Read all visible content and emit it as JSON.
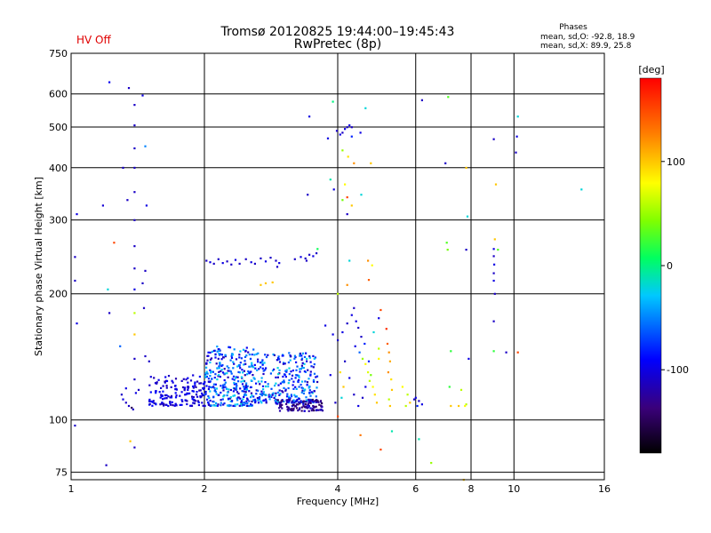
{
  "header": {
    "status": "HV Off",
    "title_line1": "Tromsø 20120825 19:44:00–19:45:43",
    "title_line2": "RwPretec (8p)",
    "stats_title": "Phases",
    "stats_o": "mean, sd,O: -92.8, 18.9",
    "stats_x": "mean, sd,X:  89.9, 25.8"
  },
  "colorbar": {
    "label": "[deg]",
    "range": [
      -180,
      180
    ],
    "ticks": [
      {
        "value": 100,
        "label": "100"
      },
      {
        "value": 0,
        "label": "0"
      },
      {
        "value": -100,
        "label": "-100"
      }
    ]
  },
  "chart_data": {
    "type": "scatter",
    "xlabel": "Frequency [MHz]",
    "ylabel": "Stationary phase Virtual Height [km]",
    "xscale": "log",
    "yscale": "log",
    "xlim": [
      1,
      16
    ],
    "ylim": [
      72,
      750
    ],
    "grid": true,
    "x_ticks": [
      {
        "value": 1,
        "label": "1"
      },
      {
        "value": 2,
        "label": "2"
      },
      {
        "value": 4,
        "label": "4"
      },
      {
        "value": 6,
        "label": "6"
      },
      {
        "value": 8,
        "label": "8"
      },
      {
        "value": 10,
        "label": "10"
      },
      {
        "value": 16,
        "label": "16"
      }
    ],
    "y_ticks": [
      {
        "value": 75,
        "label": "75"
      },
      {
        "value": 100,
        "label": "100"
      },
      {
        "value": 200,
        "label": "200"
      },
      {
        "value": 300,
        "label": "300"
      },
      {
        "value": 400,
        "label": "400"
      },
      {
        "value": 500,
        "label": "500"
      },
      {
        "value": 600,
        "label": "600"
      },
      {
        "value": 750,
        "label": "750"
      }
    ],
    "points": [
      [
        1.03,
        310,
        -100
      ],
      [
        1.02,
        245,
        -110
      ],
      [
        1.02,
        215,
        -110
      ],
      [
        1.03,
        170,
        -100
      ],
      [
        1.02,
        97,
        -110
      ],
      [
        1.22,
        640,
        -95
      ],
      [
        1.18,
        325,
        -105
      ],
      [
        1.25,
        265,
        150
      ],
      [
        1.21,
        205,
        -20
      ],
      [
        1.22,
        180,
        -110
      ],
      [
        1.29,
        150,
        -60
      ],
      [
        1.2,
        78,
        -110
      ],
      [
        1.35,
        620,
        -110
      ],
      [
        1.45,
        595,
        -100
      ],
      [
        1.39,
        565,
        -110
      ],
      [
        1.39,
        505,
        -110
      ],
      [
        1.39,
        445,
        -110
      ],
      [
        1.39,
        400,
        -110
      ],
      [
        1.39,
        350,
        -110
      ],
      [
        1.39,
        300,
        -110
      ],
      [
        1.39,
        260,
        -110
      ],
      [
        1.39,
        230,
        -110
      ],
      [
        1.39,
        205,
        -100
      ],
      [
        1.39,
        180,
        60
      ],
      [
        1.39,
        160,
        100
      ],
      [
        1.39,
        140,
        -110
      ],
      [
        1.39,
        125,
        -110
      ],
      [
        1.34,
        335,
        -110
      ],
      [
        1.31,
        400,
        -110
      ],
      [
        1.47,
        450,
        -50
      ],
      [
        1.48,
        325,
        -100
      ],
      [
        1.47,
        227,
        -110
      ],
      [
        1.45,
        212,
        -110
      ],
      [
        1.46,
        185,
        -110
      ],
      [
        1.36,
        89,
        100
      ],
      [
        1.39,
        86,
        -110
      ],
      [
        1.3,
        115,
        -110
      ],
      [
        1.31,
        112,
        -100
      ],
      [
        1.33,
        110,
        -110
      ],
      [
        1.35,
        108,
        -110
      ],
      [
        1.37,
        107,
        -150
      ],
      [
        1.38,
        106,
        -110
      ],
      [
        1.4,
        116,
        -100
      ],
      [
        1.42,
        118,
        -110
      ],
      [
        1.33,
        119,
        -100
      ],
      [
        1.47,
        142,
        -110
      ],
      [
        1.5,
        138,
        -110
      ],
      [
        2.02,
        240,
        -110
      ],
      [
        2.06,
        238,
        -100
      ],
      [
        2.1,
        236,
        -110
      ],
      [
        2.15,
        242,
        -110
      ],
      [
        2.2,
        237,
        -100
      ],
      [
        2.25,
        239,
        -110
      ],
      [
        2.3,
        235,
        -110
      ],
      [
        2.35,
        241,
        -100
      ],
      [
        2.4,
        236,
        -110
      ],
      [
        2.48,
        242,
        -110
      ],
      [
        2.55,
        238,
        -100
      ],
      [
        2.6,
        236,
        -110
      ],
      [
        2.68,
        243,
        -110
      ],
      [
        2.75,
        239,
        -100
      ],
      [
        2.82,
        244,
        -110
      ],
      [
        2.9,
        240,
        -110
      ],
      [
        2.95,
        237,
        -100
      ],
      [
        2.92,
        232,
        -110
      ],
      [
        3.2,
        242,
        -110
      ],
      [
        3.3,
        245,
        -100
      ],
      [
        3.38,
        243,
        -110
      ],
      [
        3.45,
        248,
        -110
      ],
      [
        3.52,
        246,
        -100
      ],
      [
        3.58,
        250,
        -110
      ],
      [
        3.6,
        256,
        10
      ],
      [
        3.4,
        240,
        -110
      ],
      [
        2.68,
        210,
        100
      ],
      [
        2.75,
        212,
        100
      ],
      [
        2.85,
        213,
        100
      ],
      [
        3.45,
        530,
        -100
      ],
      [
        3.9,
        575,
        0
      ],
      [
        3.98,
        490,
        -110
      ],
      [
        4.05,
        480,
        -100
      ],
      [
        4.1,
        485,
        -110
      ],
      [
        4.15,
        495,
        -100
      ],
      [
        4.2,
        500,
        -110
      ],
      [
        4.25,
        505,
        -100
      ],
      [
        4.3,
        500,
        -110
      ],
      [
        4.3,
        475,
        -80
      ],
      [
        4.5,
        485,
        -100
      ],
      [
        4.62,
        555,
        -20
      ],
      [
        3.8,
        470,
        -100
      ],
      [
        4.1,
        440,
        50
      ],
      [
        4.22,
        425,
        90
      ],
      [
        4.35,
        410,
        120
      ],
      [
        4.75,
        410,
        100
      ],
      [
        3.42,
        345,
        -110
      ],
      [
        3.85,
        375,
        -10
      ],
      [
        3.92,
        355,
        -100
      ],
      [
        4.15,
        365,
        80
      ],
      [
        4.2,
        340,
        150
      ],
      [
        4.1,
        335,
        40
      ],
      [
        4.3,
        325,
        100
      ],
      [
        4.2,
        310,
        -110
      ],
      [
        4.52,
        345,
        -20
      ],
      [
        4.25,
        240,
        -20
      ],
      [
        4.68,
        240,
        120
      ],
      [
        4.78,
        234,
        80
      ],
      [
        4.7,
        216,
        140
      ],
      [
        4.2,
        210,
        120
      ],
      [
        4.0,
        200,
        60
      ],
      [
        3.75,
        168,
        -100
      ],
      [
        3.9,
        160,
        -100
      ],
      [
        4.0,
        155,
        -110
      ],
      [
        4.1,
        162,
        -100
      ],
      [
        4.2,
        170,
        -110
      ],
      [
        4.3,
        178,
        -100
      ],
      [
        4.35,
        185,
        -110
      ],
      [
        4.4,
        172,
        -100
      ],
      [
        4.45,
        166,
        -110
      ],
      [
        4.52,
        158,
        -110
      ],
      [
        4.6,
        152,
        -80
      ],
      [
        4.38,
        150,
        -100
      ],
      [
        4.48,
        145,
        -60
      ],
      [
        4.55,
        140,
        50
      ],
      [
        4.62,
        136,
        80
      ],
      [
        4.68,
        130,
        70
      ],
      [
        4.72,
        124,
        60
      ],
      [
        4.8,
        120,
        80
      ],
      [
        4.85,
        115,
        90
      ],
      [
        4.9,
        110,
        100
      ],
      [
        4.95,
        148,
        60
      ],
      [
        4.82,
        162,
        -20
      ],
      [
        5.0,
        183,
        150
      ],
      [
        4.95,
        175,
        -100
      ],
      [
        5.15,
        165,
        160
      ],
      [
        5.18,
        152,
        140
      ],
      [
        5.22,
        145,
        120
      ],
      [
        5.25,
        138,
        110
      ],
      [
        5.2,
        130,
        120
      ],
      [
        5.28,
        125,
        90
      ],
      [
        5.3,
        118,
        100
      ],
      [
        5.22,
        112,
        60
      ],
      [
        5.25,
        108,
        100
      ],
      [
        4.95,
        140,
        80
      ],
      [
        4.75,
        128,
        40
      ],
      [
        4.7,
        138,
        -80
      ],
      [
        4.62,
        120,
        -100
      ],
      [
        4.55,
        113,
        -110
      ],
      [
        4.45,
        108,
        -100
      ],
      [
        4.35,
        115,
        -110
      ],
      [
        4.25,
        126,
        -100
      ],
      [
        4.15,
        138,
        -110
      ],
      [
        4.05,
        130,
        90
      ],
      [
        4.12,
        120,
        100
      ],
      [
        4.08,
        113,
        -20
      ],
      [
        3.95,
        110,
        -110
      ],
      [
        4.0,
        102,
        150
      ],
      [
        3.85,
        128,
        -100
      ],
      [
        4.5,
        92,
        130
      ],
      [
        5.0,
        85,
        150
      ],
      [
        5.6,
        120,
        80
      ],
      [
        5.75,
        115,
        60
      ],
      [
        5.82,
        110,
        100
      ],
      [
        5.7,
        108,
        60
      ],
      [
        5.3,
        94,
        -10
      ],
      [
        6.1,
        90,
        -10
      ],
      [
        5.95,
        112,
        -110
      ],
      [
        6.0,
        113,
        -100
      ],
      [
        6.1,
        111,
        -110
      ],
      [
        6.2,
        109,
        -100
      ],
      [
        6.05,
        108,
        -80
      ],
      [
        6.2,
        580,
        -110
      ],
      [
        6.5,
        79,
        50
      ],
      [
        7.0,
        410,
        -110
      ],
      [
        7.1,
        590,
        30
      ],
      [
        7.05,
        265,
        30
      ],
      [
        7.08,
        255,
        40
      ],
      [
        7.2,
        146,
        20
      ],
      [
        7.15,
        120,
        20
      ],
      [
        7.2,
        108,
        100
      ],
      [
        7.5,
        108,
        100
      ],
      [
        7.6,
        118,
        60
      ],
      [
        7.8,
        400,
        100
      ],
      [
        7.85,
        306,
        -20
      ],
      [
        7.9,
        140,
        -100
      ],
      [
        7.75,
        108,
        80
      ],
      [
        7.8,
        109,
        60
      ],
      [
        7.7,
        72,
        100
      ],
      [
        7.8,
        255,
        -110
      ],
      [
        9.0,
        468,
        -110
      ],
      [
        9.1,
        365,
        100
      ],
      [
        9.05,
        270,
        100
      ],
      [
        9.0,
        256,
        -100
      ],
      [
        9.0,
        246,
        -110
      ],
      [
        9.02,
        235,
        -100
      ],
      [
        9.0,
        224,
        -110
      ],
      [
        9.0,
        215,
        -100
      ],
      [
        9.05,
        200,
        -110
      ],
      [
        9.0,
        172,
        -110
      ],
      [
        9.0,
        146,
        20
      ],
      [
        9.2,
        255,
        30
      ],
      [
        10.2,
        530,
        -20
      ],
      [
        10.15,
        475,
        -100
      ],
      [
        10.1,
        435,
        -110
      ],
      [
        10.2,
        145,
        150
      ],
      [
        9.6,
        145,
        -110
      ],
      [
        14.2,
        355,
        -20
      ]
    ],
    "clusters": [
      {
        "x": [
          1.5,
          2.0
        ],
        "y": [
          108,
          128
        ],
        "n": 160,
        "phase": [
          -120,
          -85
        ]
      },
      {
        "x": [
          2.0,
          2.6
        ],
        "y": [
          108,
          150
        ],
        "n": 320,
        "phase": [
          -120,
          -20
        ]
      },
      {
        "x": [
          2.6,
          3.6
        ],
        "y": [
          110,
          145
        ],
        "n": 280,
        "phase": [
          -120,
          -20
        ]
      },
      {
        "x": [
          2.9,
          3.7
        ],
        "y": [
          105,
          112
        ],
        "n": 120,
        "phase": [
          -150,
          -100
        ]
      }
    ]
  }
}
